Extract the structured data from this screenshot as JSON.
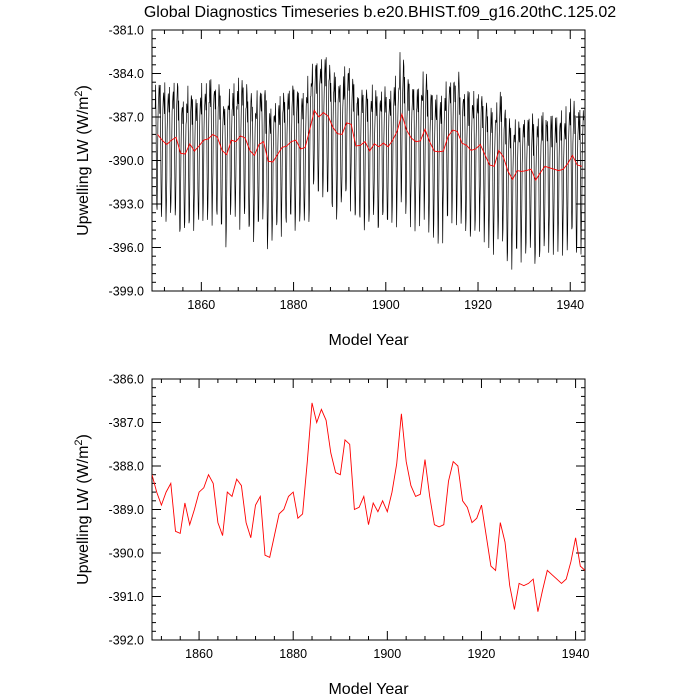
{
  "title": "Global Diagnostics Timeseries b.e20.BHIST.f09_g16.20thC.125.02",
  "colors": {
    "monthly": "#000000",
    "annual": "#ff0000"
  },
  "chart_data": [
    {
      "type": "line",
      "name": "monthly-and-annual",
      "title": "Global Diagnostics Timeseries b.e20.BHIST.f09_g16.20thC.125.02",
      "xlabel": "Model Year",
      "ylabel_main": "Upwelling LW (W/m",
      "ylabel_sup": "2",
      "ylabel_tail": ")",
      "xlim": [
        1849.3,
        1943.2
      ],
      "ylim": [
        -399.0,
        -381.0
      ],
      "xticks": [
        1860,
        1880,
        1900,
        1920,
        1940
      ],
      "xtick_labels": [
        "1860",
        "1880",
        "1900",
        "1920",
        "1940"
      ],
      "yticks": [
        -381.0,
        -384.0,
        -387.0,
        -390.0,
        -393.0,
        -396.0,
        -399.0
      ],
      "ytick_labels": [
        "-381.0",
        "-384.0",
        "-387.0",
        "-390.0",
        "-393.0",
        "-396.0",
        "-399.0"
      ],
      "series": [
        {
          "name": "monthly",
          "color": "#000000",
          "kind": "monthly-cycle",
          "start_year": 1850,
          "end_year": 1942
        },
        {
          "name": "annual mean",
          "color": "#ff0000",
          "kind": "annual"
        }
      ]
    },
    {
      "type": "line",
      "name": "annual",
      "title": "",
      "xlabel": "Model Year",
      "ylabel_main": "Upwelling LW (W/m",
      "ylabel_sup": "2",
      "ylabel_tail": ")",
      "xlim": [
        1850,
        1942
      ],
      "ylim": [
        -392.0,
        -386.0
      ],
      "xticks": [
        1860,
        1880,
        1900,
        1920,
        1940
      ],
      "xtick_labels": [
        "1860",
        "1880",
        "1900",
        "1920",
        "1940"
      ],
      "yticks": [
        -386.0,
        -387.0,
        -388.0,
        -389.0,
        -390.0,
        -391.0,
        -392.0
      ],
      "ytick_labels": [
        "-386.0",
        "-387.0",
        "-388.0",
        "-389.0",
        "-390.0",
        "-391.0",
        "-392.0"
      ],
      "series": [
        {
          "name": "annual mean",
          "color": "#ff0000",
          "x": [
            1850,
            1851,
            1852,
            1853,
            1854,
            1855,
            1856,
            1857,
            1858,
            1859,
            1860,
            1861,
            1862,
            1863,
            1864,
            1865,
            1866,
            1867,
            1868,
            1869,
            1870,
            1871,
            1872,
            1873,
            1874,
            1875,
            1876,
            1877,
            1878,
            1879,
            1880,
            1881,
            1882,
            1883,
            1884,
            1885,
            1886,
            1887,
            1888,
            1889,
            1890,
            1891,
            1892,
            1893,
            1894,
            1895,
            1896,
            1897,
            1898,
            1899,
            1900,
            1901,
            1902,
            1903,
            1904,
            1905,
            1906,
            1907,
            1908,
            1909,
            1910,
            1911,
            1912,
            1913,
            1914,
            1915,
            1916,
            1917,
            1918,
            1919,
            1920,
            1921,
            1922,
            1923,
            1924,
            1925,
            1926,
            1927,
            1928,
            1929,
            1930,
            1931,
            1932,
            1933,
            1934,
            1935,
            1936,
            1937,
            1938,
            1939,
            1940,
            1941,
            1942
          ],
          "values": [
            -388.2,
            -388.6,
            -388.9,
            -388.6,
            -388.4,
            -389.5,
            -389.55,
            -388.85,
            -389.35,
            -389.0,
            -388.6,
            -388.5,
            -388.2,
            -388.4,
            -389.3,
            -389.6,
            -388.6,
            -388.7,
            -388.3,
            -388.45,
            -389.3,
            -389.65,
            -388.9,
            -388.7,
            -390.05,
            -390.1,
            -389.6,
            -389.1,
            -389.0,
            -388.7,
            -388.6,
            -389.2,
            -389.1,
            -387.9,
            -386.55,
            -387.0,
            -386.7,
            -386.95,
            -387.7,
            -388.15,
            -388.2,
            -387.4,
            -387.5,
            -389.0,
            -388.95,
            -388.7,
            -389.35,
            -388.85,
            -389.05,
            -388.8,
            -389.05,
            -388.6,
            -387.95,
            -386.8,
            -387.9,
            -388.45,
            -388.7,
            -388.65,
            -387.85,
            -388.7,
            -389.35,
            -389.4,
            -389.35,
            -388.35,
            -387.9,
            -388.0,
            -388.8,
            -388.95,
            -389.3,
            -389.2,
            -388.9,
            -389.6,
            -390.3,
            -390.4,
            -389.3,
            -389.75,
            -390.75,
            -391.3,
            -390.7,
            -390.75,
            -390.7,
            -390.6,
            -391.35,
            -390.85,
            -390.4,
            -390.5,
            -390.6,
            -390.7,
            -390.6,
            -390.2,
            -389.65,
            -390.3,
            -390.4
          ]
        }
      ]
    }
  ]
}
